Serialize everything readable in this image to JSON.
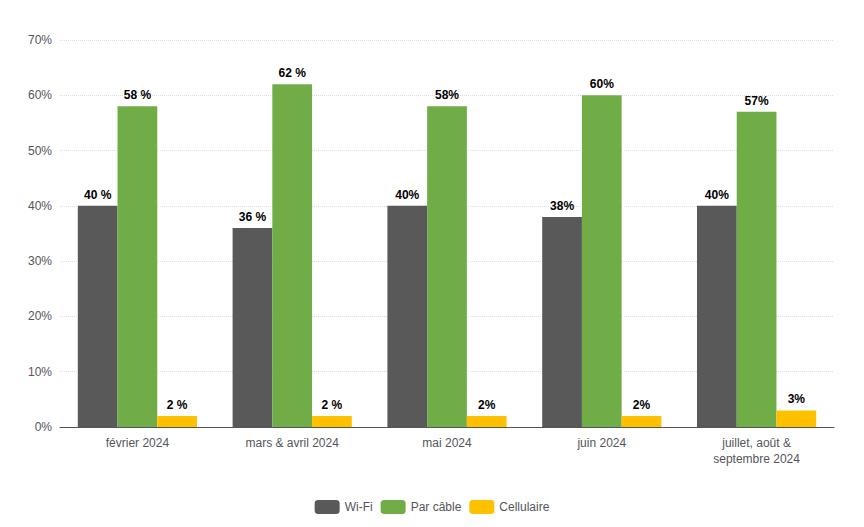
{
  "chart_data": {
    "type": "bar",
    "categories": [
      "février 2024",
      "mars & avril 2024",
      "mai 2024",
      "juin 2024",
      "juillet, août &\nseptembre 2024"
    ],
    "series": [
      {
        "name": "Wi-Fi",
        "color": "#595959",
        "values": [
          40,
          36,
          40,
          38,
          40
        ],
        "value_labels": [
          "40 %",
          "36 %",
          "40%",
          "38%",
          "40%"
        ]
      },
      {
        "name": "Par câble",
        "color": "#70AD47",
        "values": [
          58,
          62,
          58,
          60,
          57
        ],
        "value_labels": [
          "58 %",
          "62 %",
          "58%",
          "60%",
          "57%"
        ]
      },
      {
        "name": "Cellulaire",
        "color": "#FFC000",
        "values": [
          2,
          2,
          2,
          2,
          3
        ],
        "value_labels": [
          "2 %",
          "2 %",
          "2%",
          "2%",
          "3%"
        ]
      }
    ],
    "ylim": [
      0,
      70
    ],
    "yticks": [
      {
        "value": 0,
        "label": "0%"
      },
      {
        "value": 10,
        "label": "10%"
      },
      {
        "value": 20,
        "label": "20%"
      },
      {
        "value": 30,
        "label": "30%"
      },
      {
        "value": 40,
        "label": "40%"
      },
      {
        "value": 50,
        "label": "50%"
      },
      {
        "value": 60,
        "label": "60%"
      },
      {
        "value": 70,
        "label": "70%"
      }
    ],
    "grid": true,
    "legend": "bottom",
    "data_labels": true
  }
}
